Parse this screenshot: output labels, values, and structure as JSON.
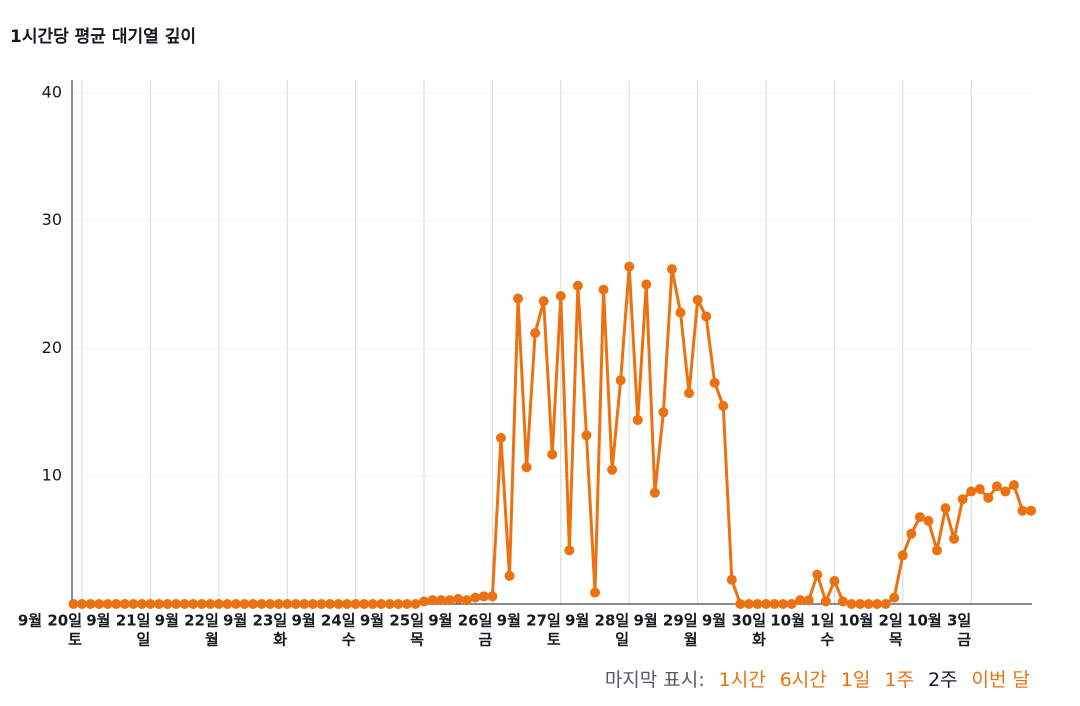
{
  "chart_data": {
    "type": "line",
    "title": "1시간당 평균 대기열 깊이",
    "series": [
      {
        "name": "평균 대기열 깊이",
        "color": "#ec7211",
        "values": [
          0,
          0,
          0,
          0,
          0,
          0,
          0,
          0,
          0,
          0,
          0,
          0,
          0,
          0,
          0,
          0,
          0,
          0,
          0,
          0,
          0,
          0,
          0,
          0,
          0,
          0,
          0,
          0,
          0,
          0,
          0,
          0,
          0,
          0,
          0,
          0,
          0,
          0,
          0,
          0,
          0,
          0.2,
          0.3,
          0.3,
          0.3,
          0.4,
          0.3,
          0.5,
          0.6,
          0.6,
          13,
          2.2,
          23.9,
          10.7,
          21.2,
          23.7,
          11.7,
          24.1,
          4.2,
          24.9,
          13.2,
          0.9,
          24.6,
          10.5,
          17.5,
          26.4,
          14.4,
          25,
          8.7,
          15,
          26.2,
          22.8,
          16.5,
          23.8,
          22.5,
          17.3,
          15.5,
          1.9,
          0,
          0,
          0,
          0,
          0,
          0,
          0,
          0.3,
          0.3,
          2.3,
          0.2,
          1.8,
          0.2,
          0,
          0,
          0,
          0,
          0,
          0.5,
          3.8,
          5.5,
          6.8,
          6.5,
          4.2,
          7.5,
          5.1,
          8.2,
          8.8,
          9,
          8.3,
          9.2,
          8.8,
          9.3,
          7.3,
          7.3
        ]
      }
    ],
    "xticks": [
      {
        "value": 1,
        "label": "9월 20일",
        "sub": "토"
      },
      {
        "value": 9,
        "label": "9월 21일",
        "sub": "일"
      },
      {
        "value": 17,
        "label": "9월 22일",
        "sub": "월"
      },
      {
        "value": 25,
        "label": "9월 23일",
        "sub": "화"
      },
      {
        "value": 33,
        "label": "9월 24일",
        "sub": "수"
      },
      {
        "value": 41,
        "label": "9월 25일",
        "sub": "목"
      },
      {
        "value": 49,
        "label": "9월 26일",
        "sub": "금"
      },
      {
        "value": 57,
        "label": "9월 27일",
        "sub": "토"
      },
      {
        "value": 65,
        "label": "9월 28일",
        "sub": "일"
      },
      {
        "value": 73,
        "label": "9월 29일",
        "sub": "월"
      },
      {
        "value": 81,
        "label": "9월 30일",
        "sub": "화"
      },
      {
        "value": 89,
        "label": "10월 1일",
        "sub": "수"
      },
      {
        "value": 97,
        "label": "10월 2일",
        "sub": "목"
      },
      {
        "value": 105,
        "label": "10월 3일",
        "sub": "금"
      }
    ],
    "ylim": [
      0,
      41
    ],
    "yticks": [
      10,
      20,
      30,
      40
    ],
    "grid": true
  },
  "time_range": {
    "label": "마지막 표시:",
    "options": [
      "1시간",
      "6시간",
      "1일",
      "1주",
      "2주",
      "이번 달"
    ],
    "selected_index": 4
  }
}
